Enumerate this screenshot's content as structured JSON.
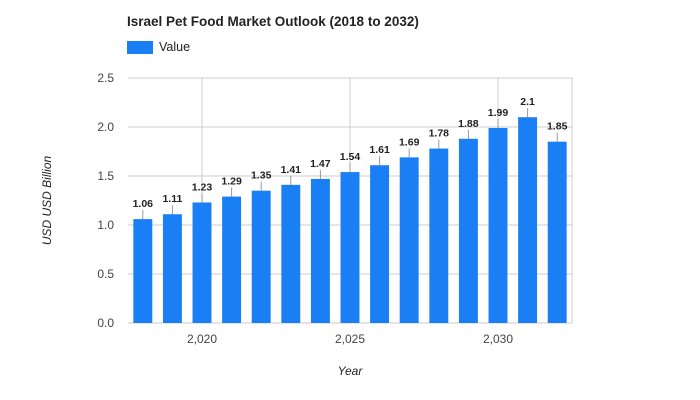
{
  "colors": {
    "bar": "#1a7ff5",
    "grid": "#cccccc",
    "axis_text": "#444444",
    "label_text": "#222222"
  },
  "chart_data": {
    "type": "bar",
    "title": "Israel Pet Food Market Outlook (2018 to 2032)",
    "xlabel": "Year",
    "ylabel": "USD USD Billion",
    "legend": {
      "position": "top-left",
      "entries": [
        "Value"
      ]
    },
    "series": [
      {
        "name": "Value",
        "x": [
          2018,
          2019,
          2020,
          2021,
          2022,
          2023,
          2024,
          2025,
          2026,
          2027,
          2028,
          2029,
          2030,
          2031,
          2032
        ],
        "values": [
          1.06,
          1.11,
          1.23,
          1.29,
          1.35,
          1.41,
          1.47,
          1.54,
          1.61,
          1.69,
          1.78,
          1.88,
          1.99,
          2.1,
          1.85
        ],
        "labels": [
          "1.06",
          "1.11",
          "1.23",
          "1.29",
          "1.35",
          "1.41",
          "1.47",
          "1.54",
          "1.61",
          "1.69",
          "1.78",
          "1.88",
          "1.99",
          "2.1",
          "1.85"
        ]
      }
    ],
    "ylim": [
      0,
      2.5
    ],
    "yticks": [
      0,
      0.5,
      1.0,
      1.5,
      2.0,
      2.5
    ],
    "ytick_labels": [
      "0.0",
      "0.5",
      "1.0",
      "1.5",
      "2.0",
      "2.5"
    ],
    "xticks": [
      2020,
      2025,
      2030
    ],
    "xtick_labels": [
      "2,020",
      "2,025",
      "2,030"
    ],
    "grid": true
  }
}
